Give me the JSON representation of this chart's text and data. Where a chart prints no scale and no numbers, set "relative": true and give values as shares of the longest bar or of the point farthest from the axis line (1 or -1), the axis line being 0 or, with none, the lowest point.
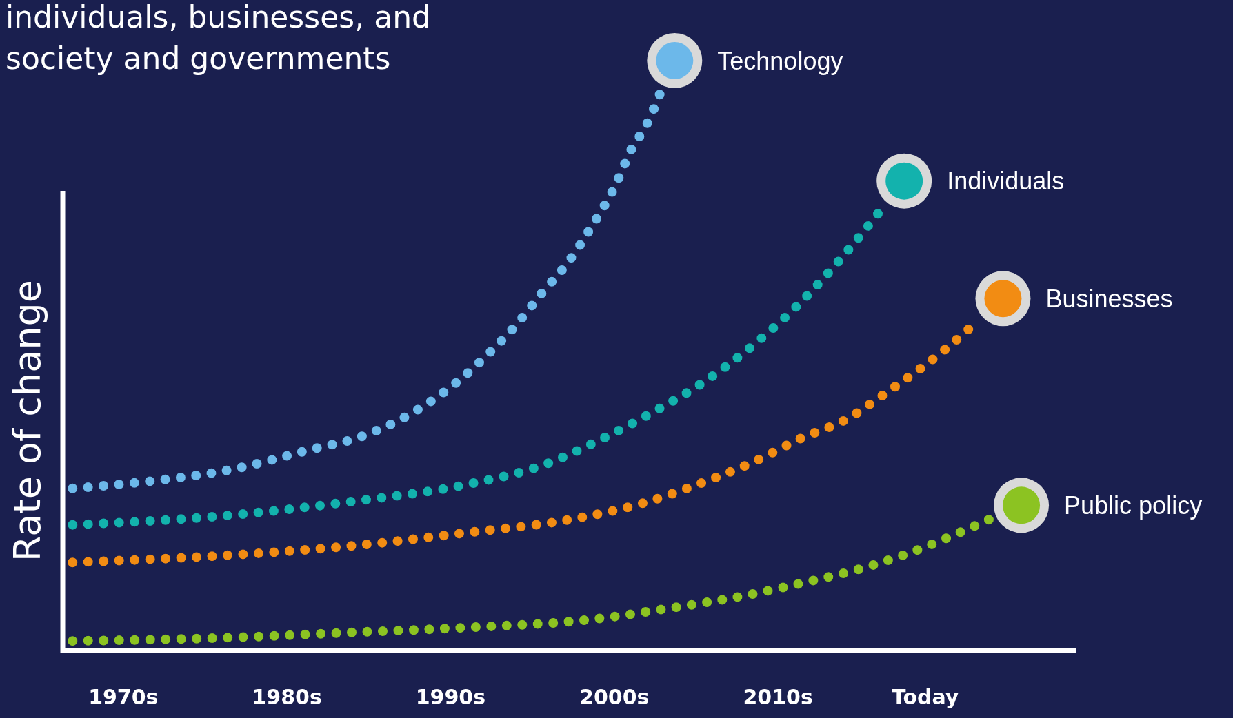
{
  "chart_data": {
    "type": "line",
    "title": "individuals, businesses, and society and governments",
    "ylabel": "Rate of change",
    "relative": true,
    "line_style": "dotted",
    "legend": "right",
    "xlim": [
      1966.3,
      2028.2
    ],
    "xticks": [
      {
        "value": 1970,
        "label": "1970s"
      },
      {
        "value": 1980,
        "label": "1980s"
      },
      {
        "value": 1990,
        "label": "1990s"
      },
      {
        "value": 2000,
        "label": "2000s"
      },
      {
        "value": 2010,
        "label": "2010s"
      },
      {
        "value": 2019,
        "label": "Today"
      }
    ],
    "series": [
      {
        "name": "Technology",
        "color": "#6cb8ea",
        "x": [
          1966.9,
          1971.7,
          1976.5,
          1981.3,
          1984.8,
          1988.2,
          1990.2,
          1992.1,
          1993.9,
          1995.6,
          1997.2,
          1998.6,
          2000.0,
          2001.2,
          2001.8,
          2002.9
        ],
        "values": [
          0.289,
          0.302,
          0.322,
          0.357,
          0.384,
          0.433,
          0.474,
          0.523,
          0.577,
          0.638,
          0.693,
          0.755,
          0.825,
          0.902,
          0.928,
          1
        ]
      },
      {
        "name": "Individuals",
        "color": "#13b2ad",
        "x": [
          1966.9,
          1976.5,
          1983.8,
          1991.0,
          1995.8,
          1999.1,
          2002.5,
          2005.6,
          2008.6,
          2011.4,
          2013.2,
          2014.9,
          2016.5
        ],
        "values": [
          0.224,
          0.241,
          0.265,
          0.296,
          0.332,
          0.375,
          0.427,
          0.481,
          0.547,
          0.621,
          0.677,
          0.735,
          0.793
        ]
      },
      {
        "name": "Businesses",
        "color": "#f28c13",
        "x": [
          1966.9,
          1976.5,
          1983.8,
          1991.0,
          1997.0,
          2001.8,
          2005.1,
          2008.5,
          2011.4,
          2014.3,
          2016.4,
          2018.4,
          2020.4,
          2022.3
        ],
        "values": [
          0.157,
          0.17,
          0.186,
          0.21,
          0.232,
          0.263,
          0.296,
          0.336,
          0.378,
          0.414,
          0.455,
          0.496,
          0.541,
          0.59
        ]
      },
      {
        "name": "Public policy",
        "color": "#8cc322",
        "x": [
          1966.9,
          1976.5,
          1983.8,
          1991.0,
          1998.5,
          2003.3,
          2008.0,
          2011.6,
          2015.2,
          2018.6,
          2021.0,
          2023.1
        ],
        "values": [
          0.017,
          0.023,
          0.032,
          0.041,
          0.055,
          0.075,
          0.098,
          0.121,
          0.147,
          0.18,
          0.209,
          0.236
        ]
      }
    ]
  }
}
